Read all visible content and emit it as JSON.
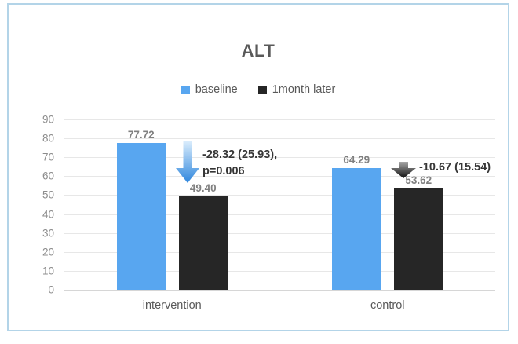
{
  "window": {
    "background": "#ffffff",
    "frame_border_color": "#b3d4e8"
  },
  "chart_data": {
    "type": "bar",
    "title": "ALT",
    "categories": [
      "intervention",
      "control"
    ],
    "series": [
      {
        "name": "baseline",
        "color": "#58a6f0",
        "values": [
          77.72,
          64.29
        ],
        "labels": [
          "77.72",
          "64.29"
        ]
      },
      {
        "name": "1month later",
        "color": "#262626",
        "values": [
          49.4,
          53.62
        ],
        "labels": [
          "49.40",
          "53.62"
        ]
      }
    ],
    "ylim": [
      0,
      90
    ],
    "yticks": [
      90,
      80,
      70,
      60,
      50,
      40,
      30,
      20,
      10,
      0
    ],
    "grid": true,
    "legend_position": "top-center",
    "annotations": [
      {
        "target_category": "intervention",
        "arrow_icon": "down-arrow-blue",
        "lines": [
          "-28.32 (25.93),",
          "p=0.006"
        ]
      },
      {
        "target_category": "control",
        "arrow_icon": "down-arrow-black",
        "lines": [
          "-10.67 (15.54)"
        ]
      }
    ]
  },
  "colors": {
    "baseline_bar": "#58a6f0",
    "month_later_bar": "#262626",
    "title_text": "#595959",
    "axis_text": "#8c8c8c",
    "category_text": "#595959",
    "annotation_text": "#363636",
    "gridline": "#e7e7e7",
    "arrow_blue_top": "#d9ecfc",
    "arrow_blue_bottom": "#2e86dd",
    "arrow_black_top": "#a8a8a8",
    "arrow_black_bottom": "#0d0d0d"
  }
}
